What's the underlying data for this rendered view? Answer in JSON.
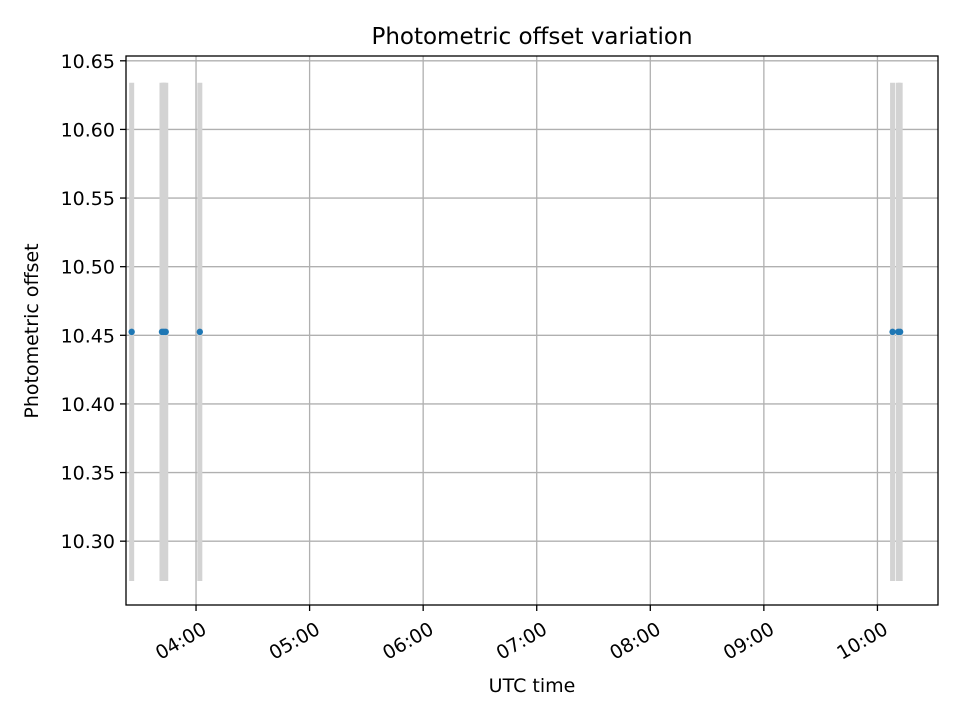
{
  "chart_data": {
    "type": "scatter",
    "title": "Photometric offset variation",
    "xlabel": "UTC time",
    "ylabel": "Photometric offset",
    "xlim": [
      "03:23",
      "10:32"
    ],
    "ylim": [
      10.2535,
      10.6535
    ],
    "x_ticks": [
      "04:00",
      "05:00",
      "06:00",
      "07:00",
      "08:00",
      "09:00",
      "10:00"
    ],
    "y_ticks": [
      "10.30",
      "10.35",
      "10.40",
      "10.45",
      "10.50",
      "10.55",
      "10.60",
      "10.65"
    ],
    "grid": true,
    "x_tick_rotation": "30 degrees",
    "series": [
      {
        "x": [
          "03:26",
          "03:42",
          "03:43",
          "03:44",
          "04:02",
          "10:08",
          "10:11",
          "10:12"
        ],
        "y": [
          10.4525,
          10.4525,
          10.4525,
          10.4525,
          10.4525,
          10.4525,
          10.4525,
          10.4525
        ],
        "error_low": [
          10.271,
          10.271,
          10.271,
          10.271,
          10.271,
          10.271,
          10.271,
          10.271
        ],
        "error_high": [
          10.634,
          10.634,
          10.634,
          10.634,
          10.634,
          10.634,
          10.634,
          10.634
        ],
        "color": "#1f77b4",
        "error_color": "#d3d3d3"
      }
    ],
    "colors": {
      "grid": "#b0b0b0",
      "axes": "#000000"
    }
  }
}
